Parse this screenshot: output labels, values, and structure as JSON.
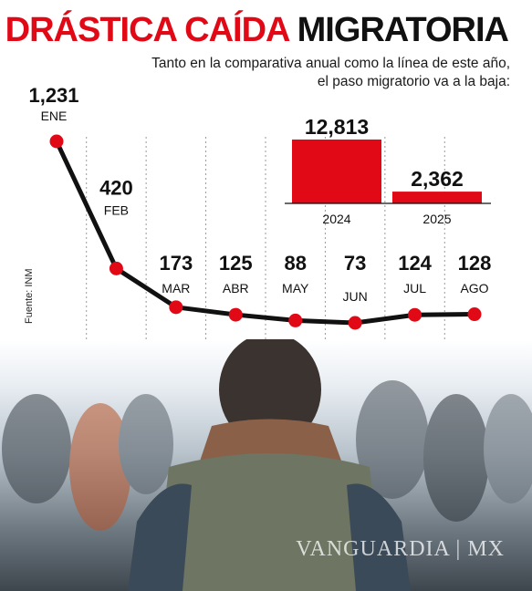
{
  "header": {
    "title_red": "DRÁSTICA CAÍDA",
    "title_dark": "MIGRATORIA",
    "subtitle_line1": "Tanto en la comparativa anual como la línea de este año,",
    "subtitle_line2": "el paso migratorio va a la baja:"
  },
  "source": "Fuente: INM",
  "watermark": "VANGUARDIA | MX",
  "colors": {
    "accent": "#e10916",
    "line": "#111111"
  },
  "chart_data": [
    {
      "type": "line",
      "categories": [
        "ENE",
        "FEB",
        "MAR",
        "ABR",
        "MAY",
        "JUN",
        "JUL",
        "AGO"
      ],
      "values": [
        1231,
        420,
        173,
        125,
        88,
        73,
        124,
        128
      ],
      "value_labels": [
        "1,231",
        "420",
        "173",
        "125",
        "88",
        "73",
        "124",
        "128"
      ],
      "grid": "vertical dashed",
      "legend": "none"
    },
    {
      "type": "bar",
      "categories": [
        "2024",
        "2025"
      ],
      "values": [
        12813,
        2362
      ],
      "value_labels": [
        "12,813",
        "2,362"
      ]
    }
  ]
}
